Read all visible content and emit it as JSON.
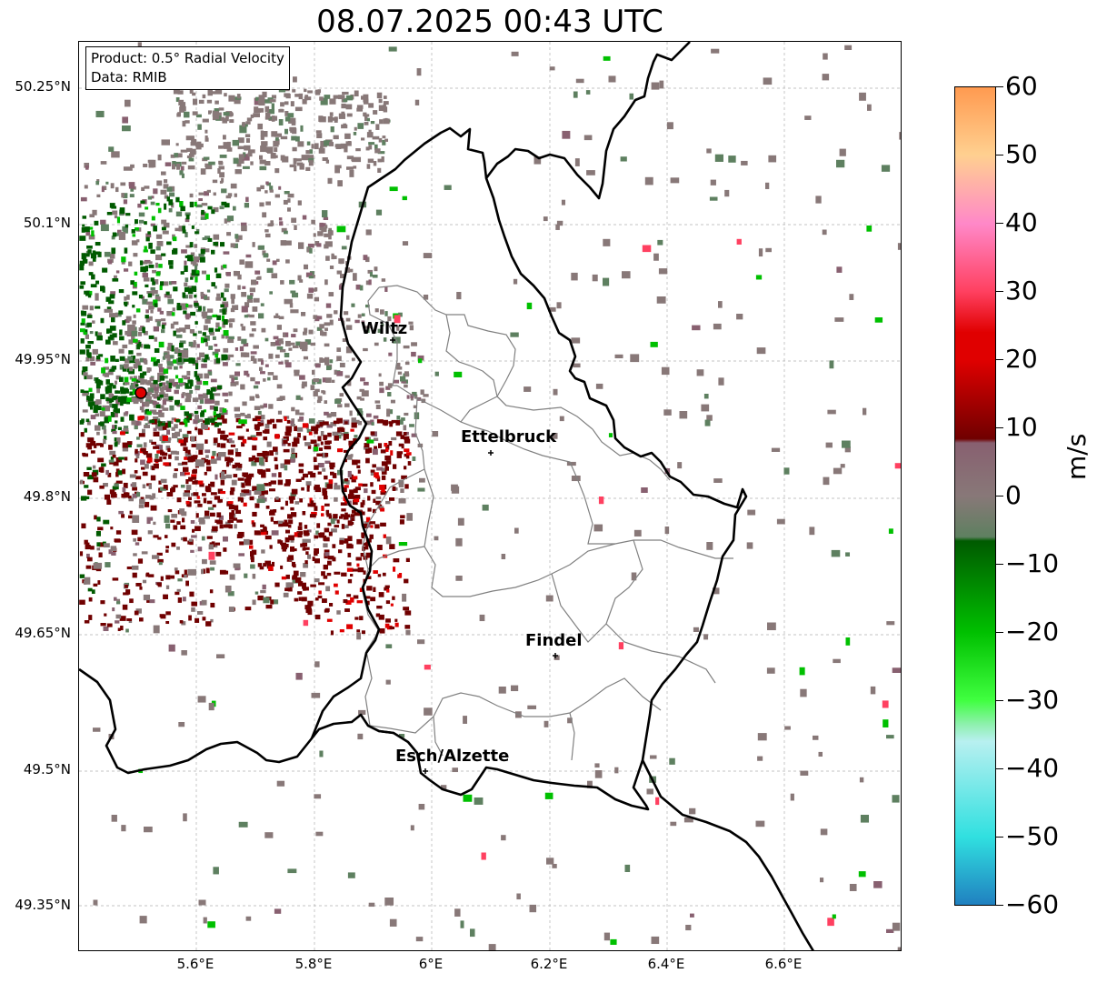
{
  "title": "08.07.2025 00:43 UTC",
  "info": {
    "product": "Product: 0.5° Radial Velocity",
    "data_source": "Data: RMIB"
  },
  "lat_ticks": [
    "50.25°N",
    "50.1°N",
    "49.95°N",
    "49.8°N",
    "49.65°N",
    "49.5°N",
    "49.35°N"
  ],
  "lon_ticks": [
    "5.6°E",
    "5.8°E",
    "6°E",
    "6.2°E",
    "6.4°E",
    "6.6°E"
  ],
  "cities": [
    {
      "name": "Wiltz"
    },
    {
      "name": "Ettelbruck"
    },
    {
      "name": "Findel"
    },
    {
      "name": "Esch/Alzette"
    }
  ],
  "colorbar": {
    "unit": "m/s",
    "range": [
      -60,
      60
    ],
    "ticks": [
      "60",
      "50",
      "40",
      "30",
      "20",
      "10",
      "0",
      "−10",
      "−20",
      "−30",
      "−40",
      "−50",
      "−60"
    ],
    "colors": {
      "p60": "#ff9a50",
      "p50": "#ffd090",
      "p40": "#ff88c8",
      "p30": "#ff4060",
      "p20": "#e00000",
      "p10": "#700000",
      "p5": "#886070",
      "zero": "#887878",
      "n5": "#5e8060",
      "n10": "#005a00",
      "n20": "#00c000",
      "n30": "#40ff40",
      "n35": "#90f0b0",
      "n40": "#b8f0f0",
      "n50": "#30e0e0",
      "n60": "#2080c0"
    }
  },
  "radar_site": {
    "color": "#e00000"
  }
}
